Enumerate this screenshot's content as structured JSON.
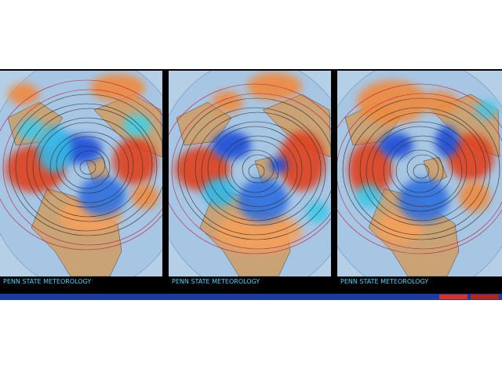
{
  "panels": [
    {
      "label": "PENN STATE METEOROLOGY"
    },
    {
      "label": "PENN STATE METEOROLOGY"
    },
    {
      "label": "PENN STATE METEOROLOGY"
    }
  ]
}
